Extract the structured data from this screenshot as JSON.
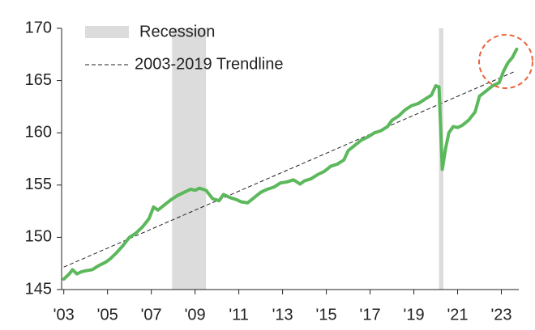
{
  "chart_data": {
    "type": "line",
    "xlim": [
      2002.9,
      2024.5
    ],
    "ylim": [
      145,
      170
    ],
    "yticks": [
      145,
      150,
      155,
      160,
      165,
      170
    ],
    "xticks": [
      {
        "value": 2003,
        "label": "'03"
      },
      {
        "value": 2005,
        "label": "'05"
      },
      {
        "value": 2007,
        "label": "'07"
      },
      {
        "value": 2009,
        "label": "'09"
      },
      {
        "value": 2011,
        "label": "'11"
      },
      {
        "value": 2013,
        "label": "'13"
      },
      {
        "value": 2015,
        "label": "'15"
      },
      {
        "value": 2017,
        "label": "'17"
      },
      {
        "value": 2019,
        "label": "'19"
      },
      {
        "value": 2021,
        "label": "'21"
      },
      {
        "value": 2023,
        "label": "'23"
      }
    ],
    "recessions": {
      "name": "Recession",
      "color": "#dcdcdc",
      "spans": [
        [
          2007.95,
          2009.5
        ],
        [
          2020.15,
          2020.35
        ]
      ]
    },
    "trendline": {
      "name": "2003-2019 Trendline",
      "color": "#222222",
      "x": [
        2003,
        2023.65
      ],
      "values": [
        147.15,
        165.9
      ]
    },
    "series": [
      {
        "color": "#5cb85c",
        "x": [
          2003.0,
          2003.25,
          2003.4,
          2003.6,
          2003.8,
          2004.0,
          2004.3,
          2004.6,
          2004.9,
          2005.1,
          2005.4,
          2005.7,
          2006.0,
          2006.3,
          2006.6,
          2006.9,
          2007.1,
          2007.3,
          2007.6,
          2007.9,
          2008.2,
          2008.5,
          2008.8,
          2009.0,
          2009.2,
          2009.5,
          2009.8,
          2010.1,
          2010.3,
          2010.6,
          2010.9,
          2011.1,
          2011.4,
          2011.7,
          2012.0,
          2012.3,
          2012.6,
          2012.9,
          2013.2,
          2013.5,
          2013.8,
          2014.0,
          2014.3,
          2014.6,
          2014.9,
          2015.2,
          2015.5,
          2015.8,
          2016.0,
          2016.3,
          2016.6,
          2016.9,
          2017.2,
          2017.5,
          2017.8,
          2018.0,
          2018.3,
          2018.6,
          2018.9,
          2019.2,
          2019.5,
          2019.8,
          2020.0,
          2020.15,
          2020.3,
          2020.45,
          2020.6,
          2020.8,
          2021.0,
          2021.2,
          2021.5,
          2021.8,
          2022.0,
          2022.3,
          2022.6,
          2022.9,
          2023.1,
          2023.3,
          2023.5,
          2023.7
        ],
        "values": [
          146.0,
          146.5,
          146.9,
          146.5,
          146.7,
          146.8,
          146.9,
          147.3,
          147.6,
          147.9,
          148.5,
          149.2,
          150.0,
          150.4,
          151.0,
          151.8,
          152.9,
          152.6,
          153.1,
          153.6,
          154.0,
          154.3,
          154.6,
          154.5,
          154.7,
          154.5,
          153.7,
          153.5,
          154.1,
          153.8,
          153.6,
          153.4,
          153.3,
          153.8,
          154.3,
          154.6,
          154.8,
          155.2,
          155.3,
          155.5,
          155.1,
          155.4,
          155.6,
          156.0,
          156.3,
          156.8,
          157.0,
          157.4,
          158.3,
          158.8,
          159.3,
          159.6,
          160.0,
          160.2,
          160.6,
          161.2,
          161.6,
          162.2,
          162.6,
          162.8,
          163.2,
          163.6,
          164.5,
          164.4,
          156.5,
          158.5,
          160.0,
          160.6,
          160.5,
          160.7,
          161.2,
          162.0,
          163.5,
          164.0,
          164.5,
          164.8,
          165.9,
          166.7,
          167.2,
          168.0
        ]
      }
    ]
  }
}
